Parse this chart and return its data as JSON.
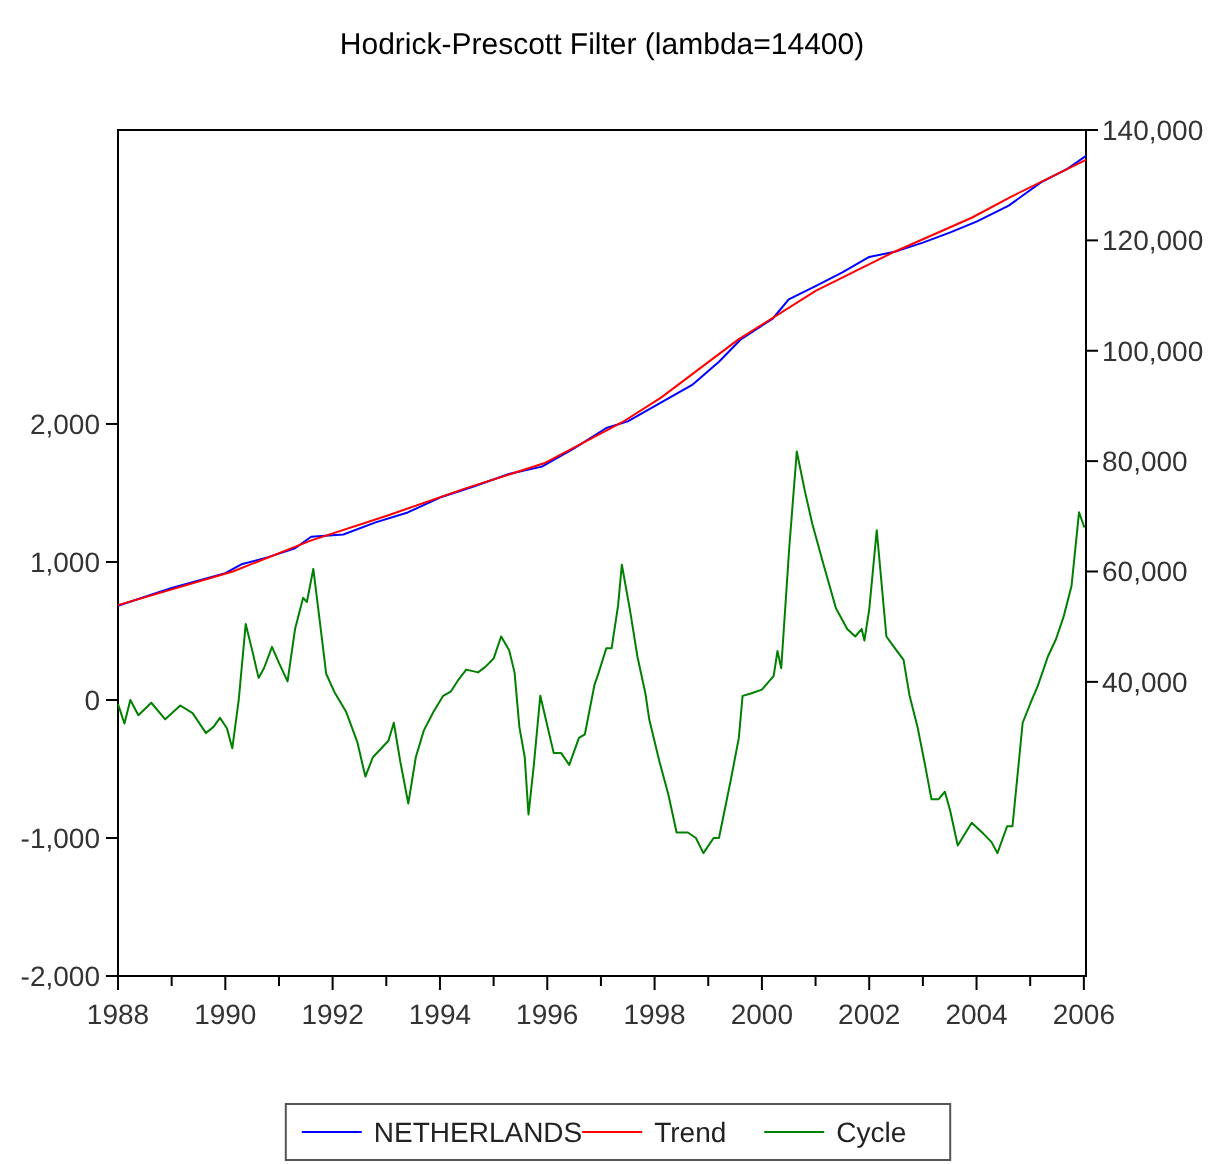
{
  "chart_data": {
    "type": "line",
    "title": "Hodrick-Prescott Filter (lambda=14400)",
    "xlim": [
      1988,
      2006.04
    ],
    "xticks": [
      {
        "value": 1988,
        "label": "1988"
      },
      {
        "value": 1989,
        "label": null
      },
      {
        "value": 1990,
        "label": "1990"
      },
      {
        "value": 1991,
        "label": null
      },
      {
        "value": 1992,
        "label": "1992"
      },
      {
        "value": 1993,
        "label": null
      },
      {
        "value": 1994,
        "label": "1994"
      },
      {
        "value": 1995,
        "label": null
      },
      {
        "value": 1996,
        "label": "1996"
      },
      {
        "value": 1997,
        "label": null
      },
      {
        "value": 1998,
        "label": "1998"
      },
      {
        "value": 1999,
        "label": null
      },
      {
        "value": 2000,
        "label": "2000"
      },
      {
        "value": 2001,
        "label": null
      },
      {
        "value": 2002,
        "label": "2002"
      },
      {
        "value": 2003,
        "label": null
      },
      {
        "value": 2004,
        "label": "2004"
      },
      {
        "value": 2005,
        "label": null
      },
      {
        "value": 2006,
        "label": "2006"
      }
    ],
    "ylim": [
      -2000,
      4130
    ],
    "yticks": [
      {
        "value": -2000,
        "label": "-2,000"
      },
      {
        "value": -1000,
        "label": "-1,000"
      },
      {
        "value": 0,
        "label": "0"
      },
      {
        "value": 1000,
        "label": "1,000"
      },
      {
        "value": 2000,
        "label": "2,000"
      }
    ],
    "y2lim": [
      -13300,
      140000
    ],
    "y2ticks": [
      {
        "value": 40000,
        "label": "40,000"
      },
      {
        "value": 60000,
        "label": "60,000"
      },
      {
        "value": 80000,
        "label": "80,000"
      },
      {
        "value": 100000,
        "label": "100,000"
      },
      {
        "value": 120000,
        "label": "120,000"
      },
      {
        "value": 140000,
        "label": "140,000"
      }
    ],
    "grid": false,
    "legend": "bottom",
    "marker": "none",
    "line_style": "solid",
    "series": [
      {
        "name": "NETHERLANDS",
        "color": "#0000ff",
        "axis": "y2",
        "x": [
          1988.0,
          1989.0,
          1990.0,
          1990.3,
          1990.8,
          1991.3,
          1991.6,
          1992.2,
          1992.8,
          1993.4,
          1994.0,
          1994.6,
          1995.3,
          1995.9,
          1996.5,
          1997.1,
          1997.5,
          1998.1,
          1998.7,
          1999.2,
          1999.6,
          2000.2,
          2000.5,
          2001.0,
          2001.5,
          2002.0,
          2002.5,
          2003.0,
          2003.5,
          2004.0,
          2004.6,
          2005.2,
          2005.7,
          2006.04
        ],
        "values": [
          53800,
          57000,
          59700,
          61300,
          62600,
          64200,
          66300,
          66700,
          68900,
          70700,
          73400,
          75300,
          77700,
          79000,
          82300,
          86000,
          87200,
          90500,
          93800,
          98000,
          102000,
          105800,
          109300,
          111700,
          114200,
          117000,
          118000,
          119600,
          121400,
          123400,
          126300,
          130500,
          133000,
          135300
        ]
      },
      {
        "name": "Trend",
        "color": "#ff0000",
        "axis": "y2",
        "x": [
          1988.0,
          1990.14,
          1991.59,
          1993.04,
          1994.49,
          1995.94,
          1997.39,
          1998.12,
          1999.57,
          2001.01,
          2002.46,
          2003.91,
          2004.64,
          2006.04
        ],
        "values": [
          53900,
          60000,
          65600,
          70200,
          75100,
          79600,
          87000,
          91500,
          102100,
          110900,
          117900,
          124100,
          127900,
          134600
        ]
      },
      {
        "name": "Cycle",
        "color": "#008000",
        "axis": "y",
        "x": [
          1988.0,
          1988.12,
          1988.23,
          1988.38,
          1988.62,
          1988.88,
          1989.16,
          1989.39,
          1989.64,
          1989.78,
          1989.9,
          1990.03,
          1990.13,
          1990.25,
          1990.38,
          1990.51,
          1990.62,
          1990.72,
          1990.87,
          1991.01,
          1991.16,
          1991.3,
          1991.45,
          1991.52,
          1991.64,
          1991.77,
          1991.88,
          1992.03,
          1992.25,
          1992.46,
          1992.61,
          1992.75,
          1993.04,
          1993.14,
          1993.26,
          1993.41,
          1993.55,
          1993.7,
          1993.88,
          1994.06,
          1994.2,
          1994.35,
          1994.49,
          1994.71,
          1994.86,
          1995.0,
          1995.14,
          1995.29,
          1995.39,
          1995.48,
          1995.58,
          1995.65,
          1995.75,
          1995.87,
          1995.94,
          1996.12,
          1996.26,
          1996.41,
          1996.59,
          1996.7,
          1996.88,
          1996.96,
          1997.1,
          1997.2,
          1997.32,
          1997.39,
          1997.54,
          1997.68,
          1997.83,
          1997.9,
          1998.09,
          1998.26,
          1998.41,
          1998.62,
          1998.77,
          1998.91,
          1999.1,
          1999.2,
          1999.42,
          1999.57,
          1999.64,
          1999.78,
          2000.0,
          2000.22,
          2000.29,
          2000.36,
          2000.51,
          2000.65,
          2000.8,
          2000.94,
          2001.16,
          2001.38,
          2001.59,
          2001.74,
          2001.86,
          2001.91,
          2002.0,
          2002.14,
          2002.32,
          2002.46,
          2002.64,
          2002.75,
          2002.9,
          2003.04,
          2003.16,
          2003.29,
          2003.41,
          2003.51,
          2003.65,
          2003.91,
          2004.13,
          2004.28,
          2004.39,
          2004.57,
          2004.67,
          2004.86,
          2005.03,
          2005.14,
          2005.33,
          2005.48,
          2005.62,
          2005.77,
          2005.91,
          2006.01
        ],
        "values": [
          -30,
          -170,
          0,
          -110,
          -20,
          -140,
          -40,
          -95,
          -240,
          -195,
          -130,
          -205,
          -350,
          0,
          550,
          345,
          160,
          230,
          385,
          260,
          135,
          515,
          740,
          710,
          950,
          540,
          190,
          60,
          -85,
          -305,
          -555,
          -415,
          -295,
          -165,
          -445,
          -750,
          -415,
          -220,
          -85,
          30,
          60,
          150,
          220,
          200,
          245,
          300,
          460,
          360,
          200,
          -195,
          -415,
          -830,
          -470,
          30,
          -85,
          -385,
          -385,
          -470,
          -275,
          -250,
          110,
          200,
          375,
          375,
          685,
          980,
          655,
          315,
          45,
          -140,
          -445,
          -690,
          -960,
          -960,
          -1000,
          -1110,
          -1000,
          -1000,
          -580,
          -275,
          30,
          45,
          75,
          175,
          355,
          230,
          1105,
          1800,
          1515,
          1275,
          965,
          665,
          515,
          460,
          515,
          430,
          655,
          1230,
          460,
          385,
          290,
          35,
          -195,
          -470,
          -720,
          -720,
          -665,
          -805,
          -1055,
          -890,
          -970,
          -1030,
          -1110,
          -915,
          -915,
          -165,
          0,
          100,
          315,
          440,
          600,
          825,
          1360,
          1250
        ]
      }
    ]
  }
}
